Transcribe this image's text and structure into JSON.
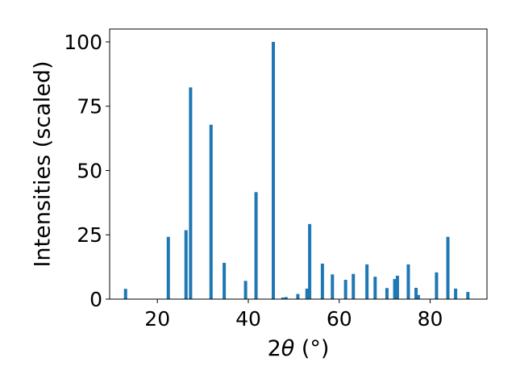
{
  "chart_data": {
    "type": "bar",
    "xlabel_prefix": "2",
    "xlabel_symbol": "θ",
    "xlabel_suffix": " (°)",
    "ylabel": "Intensities (scaled)",
    "xlim": [
      9.5,
      92.5
    ],
    "ylim": [
      0,
      105
    ],
    "xticks": [
      20,
      40,
      60,
      80
    ],
    "yticks": [
      0,
      25,
      50,
      75,
      100
    ],
    "grid": false,
    "bar_color": "#1f77b4",
    "x": [
      13.0,
      22.4,
      26.3,
      27.3,
      31.8,
      34.7,
      39.4,
      41.7,
      45.5,
      47.6,
      48.3,
      50.9,
      52.9,
      53.5,
      56.3,
      58.5,
      61.4,
      63.1,
      66.1,
      67.9,
      70.5,
      72.2,
      72.8,
      75.2,
      76.9,
      77.4,
      81.4,
      83.9,
      85.6,
      88.3
    ],
    "values": [
      4.0,
      24.2,
      26.8,
      82.3,
      67.8,
      14.1,
      7.1,
      41.6,
      100.0,
      0.6,
      0.8,
      2.0,
      4.1,
      29.2,
      13.8,
      9.6,
      7.5,
      9.8,
      13.5,
      8.7,
      4.3,
      7.8,
      9.1,
      13.5,
      4.4,
      1.6,
      10.4,
      24.2,
      4.1,
      2.8
    ]
  }
}
